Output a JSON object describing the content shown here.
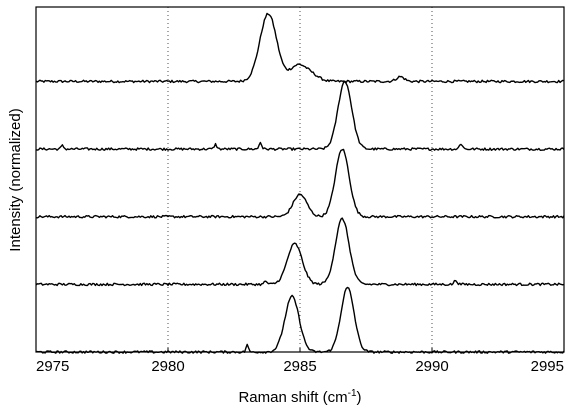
{
  "chart_data": {
    "type": "line",
    "title": "",
    "xlabel": "Raman shift (cm",
    "xlabel_sup": "-1",
    "xlabel_close": ")",
    "ylabel": "Intensity (normalized)",
    "xlim": [
      2975,
      2995
    ],
    "ylim": [
      0,
      5.1
    ],
    "grid": true,
    "x_ticks": [
      "2975",
      "2980",
      "2985",
      "2990",
      "2995"
    ],
    "series": [
      {
        "offset": 4.0,
        "peaks": [
          {
            "center": 2983.8,
            "height": 1.0,
            "width": 0.32
          },
          {
            "center": 2984.9,
            "height": 0.22,
            "width": 0.3
          },
          {
            "center": 2985.4,
            "height": 0.1,
            "width": 0.3
          },
          {
            "center": 2988.8,
            "height": 0.07,
            "width": 0.15
          }
        ]
      },
      {
        "offset": 3.0,
        "peaks": [
          {
            "center": 2986.7,
            "height": 1.0,
            "width": 0.26
          },
          {
            "center": 2983.5,
            "height": 0.1,
            "width": 0.05
          },
          {
            "center": 2981.8,
            "height": 0.07,
            "width": 0.05
          },
          {
            "center": 2976.0,
            "height": 0.05,
            "width": 0.05
          },
          {
            "center": 2991.1,
            "height": 0.08,
            "width": 0.06
          }
        ]
      },
      {
        "offset": 2.0,
        "peaks": [
          {
            "center": 2986.6,
            "height": 1.0,
            "width": 0.26
          },
          {
            "center": 2985.0,
            "height": 0.33,
            "width": 0.26
          }
        ]
      },
      {
        "offset": 1.0,
        "peaks": [
          {
            "center": 2986.6,
            "height": 0.97,
            "width": 0.26
          },
          {
            "center": 2984.8,
            "height": 0.6,
            "width": 0.28
          },
          {
            "center": 2983.7,
            "height": 0.05,
            "width": 0.05
          },
          {
            "center": 2990.9,
            "height": 0.06,
            "width": 0.06
          }
        ]
      },
      {
        "offset": 0.0,
        "peaks": [
          {
            "center": 2986.8,
            "height": 0.95,
            "width": 0.25
          },
          {
            "center": 2984.7,
            "height": 0.82,
            "width": 0.27
          },
          {
            "center": 2983.0,
            "height": 0.12,
            "width": 0.04
          }
        ]
      }
    ]
  }
}
